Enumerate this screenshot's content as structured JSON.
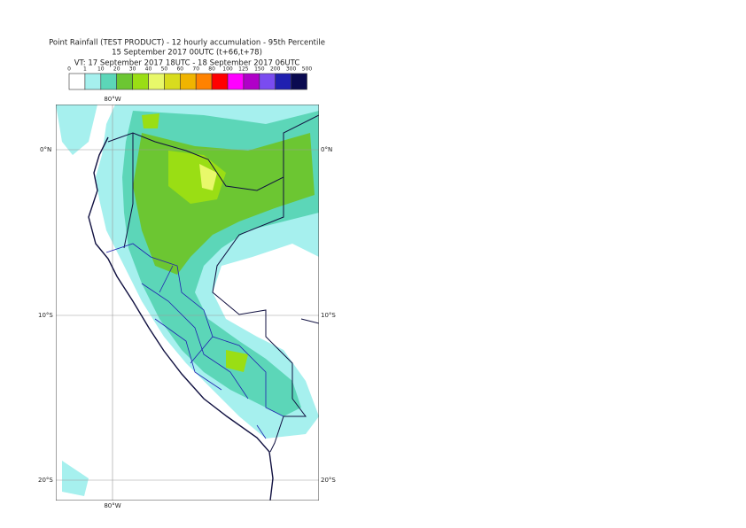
{
  "header": {
    "lines": [
      "Point Rainfall (TEST PRODUCT) - 12 hourly accumulation - 95th Percentile",
      "15 September 2017 00UTC (t+66,t+78)",
      "VT: 17 September 2017 18UTC - 18 September 2017 06UTC"
    ]
  },
  "legend": {
    "thresholds": [
      0,
      1,
      10,
      20,
      30,
      40,
      50,
      60,
      70,
      80,
      100,
      125,
      150,
      200,
      300,
      500
    ],
    "colors": [
      "#ffffff",
      "#a6f0ee",
      "#5cd6b8",
      "#6cc632",
      "#9ade14",
      "#e8f86a",
      "#d8dc1e",
      "#f0b400",
      "#ff8200",
      "#ff0000",
      "#ff00ff",
      "#b000c8",
      "#7a4cf0",
      "#2020b0",
      "#0a0a50"
    ]
  },
  "map": {
    "lat_labels": [
      "0°N",
      "10°S",
      "20°S"
    ],
    "lon_labels": [
      "80°W"
    ]
  }
}
